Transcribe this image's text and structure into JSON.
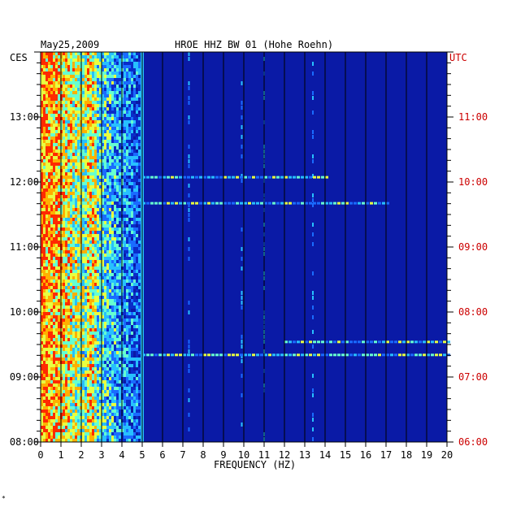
{
  "chart_data": {
    "type": "heatmap",
    "date": "May25,2009",
    "title": "HROE HHZ BW 01 (Hohe Roehn)",
    "left_axis_label": "CES",
    "right_axis_label": "UTC",
    "xlabel": "FREQUENCY (HZ)",
    "xlim": [
      0,
      20
    ],
    "x_ticks": [
      "0",
      "1",
      "2",
      "3",
      "4",
      "5",
      "6",
      "7",
      "8",
      "9",
      "10",
      "11",
      "12",
      "13",
      "14",
      "15",
      "16",
      "17",
      "18",
      "19",
      "20"
    ],
    "left_ticks": [
      "13:00",
      "12:00",
      "11:00",
      "10:00",
      "09:00",
      "08:00"
    ],
    "right_ticks": [
      "11:00",
      "10:00",
      "09:00",
      "08:00",
      "07:00",
      "06:00"
    ],
    "time_range_ces": [
      "08:00",
      "14:00"
    ],
    "vertical_grid": true,
    "colors": {
      "background": "#0a1aa6",
      "scale": [
        "#06109a",
        "#0a2cc8",
        "#1a6bff",
        "#27c0ff",
        "#66ffd0",
        "#e8ff40",
        "#ffb000",
        "#ff2a00"
      ],
      "utc_text": "#cc0000"
    },
    "features": {
      "low_frequency_band_hz": [
        0,
        5
      ],
      "line_5hz": 5,
      "tonal_lines_hz": [
        7.3,
        9.9,
        11.0,
        13.4
      ],
      "horizontal_events": [
        {
          "time_ces": "11:40",
          "from_hz": 5,
          "to_hz": 17
        },
        {
          "time_ces": "09:32",
          "from_hz": 12,
          "to_hz": 20
        },
        {
          "time_ces": "09:20",
          "from_hz": 5,
          "to_hz": 20
        },
        {
          "time_ces": "12:04",
          "from_hz": 5,
          "to_hz": 14
        }
      ]
    }
  },
  "footer_mark": "*"
}
